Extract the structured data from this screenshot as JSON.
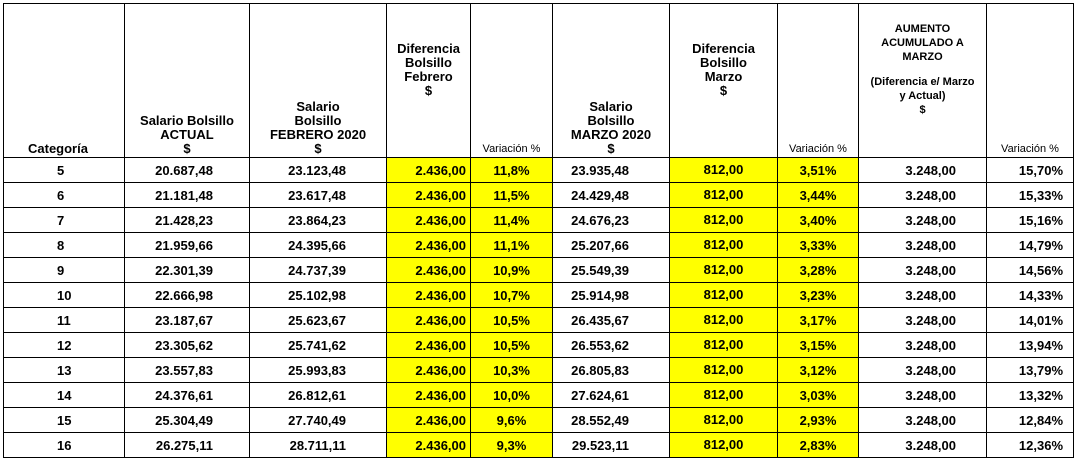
{
  "headers": {
    "categoria": "Categoría",
    "actual": [
      "Salario Bolsillo",
      "ACTUAL",
      "$"
    ],
    "febrero": [
      "Salario",
      "Bolsillo",
      "FEBRERO 2020",
      "$"
    ],
    "dif_febrero": [
      "Diferencia",
      "Bolsillo",
      "Febrero",
      "$"
    ],
    "var_febrero": "Variación %",
    "marzo": [
      "Salario",
      "Bolsillo",
      "MARZO 2020",
      "$"
    ],
    "dif_marzo": [
      "Diferencia",
      "Bolsillo",
      "Marzo",
      "$"
    ],
    "var_marzo": "Variación %",
    "aumento": [
      "AUMENTO",
      "ACUMULADO A",
      "MARZO"
    ],
    "aumento_sub": [
      "(Diferencia e/ Marzo",
      "y Actual)",
      "$"
    ],
    "var_total": "Variación %"
  },
  "colors": {
    "highlight": "#ffff00"
  },
  "rows": [
    [
      "5",
      "20.687,48",
      "23.123,48",
      "2.436,00",
      "11,8%",
      "23.935,48",
      "812,00",
      "3,51%",
      "3.248,00",
      "15,70%"
    ],
    [
      "6",
      "21.181,48",
      "23.617,48",
      "2.436,00",
      "11,5%",
      "24.429,48",
      "812,00",
      "3,44%",
      "3.248,00",
      "15,33%"
    ],
    [
      "7",
      "21.428,23",
      "23.864,23",
      "2.436,00",
      "11,4%",
      "24.676,23",
      "812,00",
      "3,40%",
      "3.248,00",
      "15,16%"
    ],
    [
      "8",
      "21.959,66",
      "24.395,66",
      "2.436,00",
      "11,1%",
      "25.207,66",
      "812,00",
      "3,33%",
      "3.248,00",
      "14,79%"
    ],
    [
      "9",
      "22.301,39",
      "24.737,39",
      "2.436,00",
      "10,9%",
      "25.549,39",
      "812,00",
      "3,28%",
      "3.248,00",
      "14,56%"
    ],
    [
      "10",
      "22.666,98",
      "25.102,98",
      "2.436,00",
      "10,7%",
      "25.914,98",
      "812,00",
      "3,23%",
      "3.248,00",
      "14,33%"
    ],
    [
      "11",
      "23.187,67",
      "25.623,67",
      "2.436,00",
      "10,5%",
      "26.435,67",
      "812,00",
      "3,17%",
      "3.248,00",
      "14,01%"
    ],
    [
      "12",
      "23.305,62",
      "25.741,62",
      "2.436,00",
      "10,5%",
      "26.553,62",
      "812,00",
      "3,15%",
      "3.248,00",
      "13,94%"
    ],
    [
      "13",
      "23.557,83",
      "25.993,83",
      "2.436,00",
      "10,3%",
      "26.805,83",
      "812,00",
      "3,12%",
      "3.248,00",
      "13,79%"
    ],
    [
      "14",
      "24.376,61",
      "26.812,61",
      "2.436,00",
      "10,0%",
      "27.624,61",
      "812,00",
      "3,03%",
      "3.248,00",
      "13,32%"
    ],
    [
      "15",
      "25.304,49",
      "27.740,49",
      "2.436,00",
      "9,6%",
      "28.552,49",
      "812,00",
      "2,93%",
      "3.248,00",
      "12,84%"
    ],
    [
      "16",
      "26.275,11",
      "28.711,11",
      "2.436,00",
      "9,3%",
      "29.523,11",
      "812,00",
      "2,83%",
      "3.248,00",
      "12,36%"
    ]
  ]
}
